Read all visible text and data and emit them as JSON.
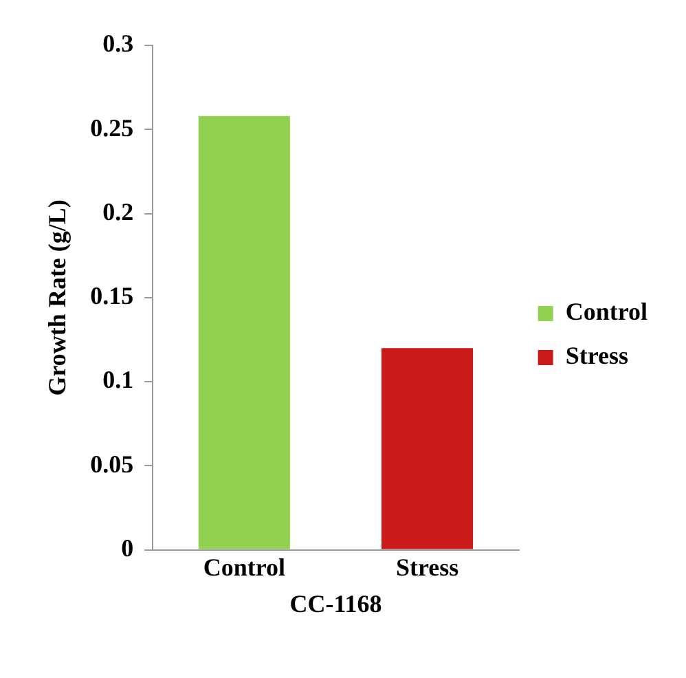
{
  "chart_data": {
    "type": "bar",
    "xlabel": "CC-1168",
    "ylabel": "Growth Rate (g/L)",
    "categories": [
      "Control",
      "Stress"
    ],
    "series": [
      {
        "name": "Control",
        "color": "#92d050",
        "values": [
          0.258,
          null
        ]
      },
      {
        "name": "Stress",
        "color": "#cc1a1a",
        "values": [
          null,
          0.12
        ]
      }
    ],
    "ylim": [
      0,
      0.3
    ],
    "yticks": [
      0,
      0.05,
      0.1,
      0.15,
      0.2,
      0.25,
      0.3
    ],
    "grid": false,
    "legend": "right"
  }
}
